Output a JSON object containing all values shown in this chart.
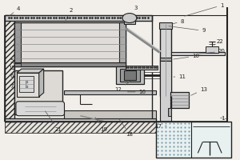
{
  "bg_color": "#f2efea",
  "lc": "#444444",
  "dc": "#222222",
  "mg": "#888888",
  "lg": "#bbbbbb",
  "wt": "#e8e4de"
}
